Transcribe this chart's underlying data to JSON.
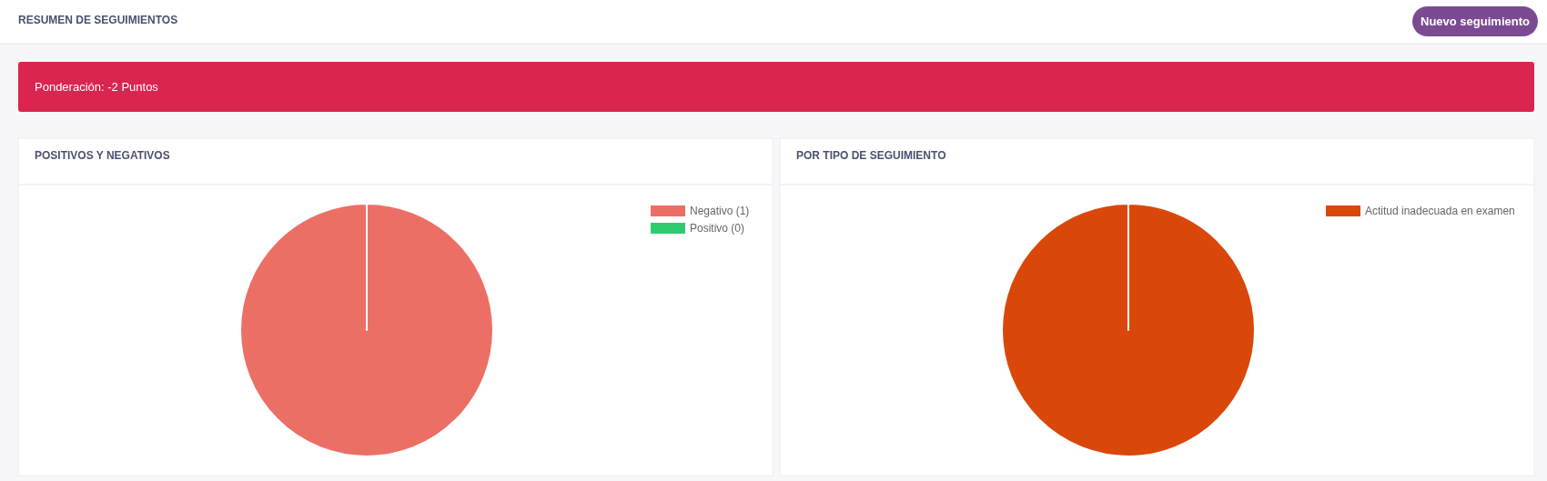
{
  "chart_data": [
    {
      "type": "other",
      "title": "RESUMEN DE SEGUIMIENTOS",
      "annotations": [
        "Nuevo seguimiento",
        "Ponderación: -2 Puntos"
      ]
    },
    {
      "type": "pie",
      "title": "POSITIVOS Y NEGATIVOS",
      "categories": [
        "Negativo (1)",
        "Positivo (0)"
      ],
      "values": [
        100,
        0
      ],
      "colors": [
        "#ec6f66",
        "#2ecc71"
      ],
      "legend": "top right"
    },
    {
      "type": "pie",
      "title": "POR TIPO DE SEGUIMIENTO",
      "categories": [
        "Actitud inadecuada en examen"
      ],
      "values": [
        100
      ],
      "colors": [
        "#d9480a"
      ],
      "legend": "top right"
    }
  ]
}
